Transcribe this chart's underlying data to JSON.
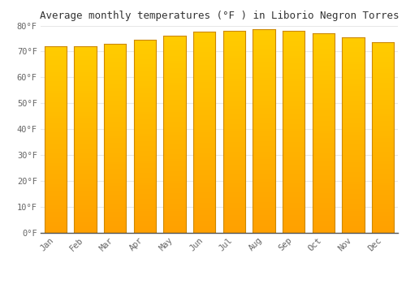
{
  "title": "Average monthly temperatures (°F ) in Liborio Negron Torres",
  "months": [
    "Jan",
    "Feb",
    "Mar",
    "Apr",
    "May",
    "Jun",
    "Jul",
    "Aug",
    "Sep",
    "Oct",
    "Nov",
    "Dec"
  ],
  "values": [
    72.0,
    72.0,
    73.0,
    74.5,
    76.0,
    77.5,
    78.0,
    78.5,
    78.0,
    77.0,
    75.5,
    73.5
  ],
  "bar_color_top": "#FFCC00",
  "bar_color_bottom": "#FFA000",
  "bar_border_color": "#CC8800",
  "ylim": [
    0,
    80
  ],
  "yticks": [
    0,
    10,
    20,
    30,
    40,
    50,
    60,
    70,
    80
  ],
  "background_color": "#FFFFFF",
  "plot_bg_color": "#FFFFFF",
  "grid_color": "#E8E8E8",
  "title_fontsize": 9,
  "tick_fontsize": 7.5,
  "bar_width": 0.75
}
